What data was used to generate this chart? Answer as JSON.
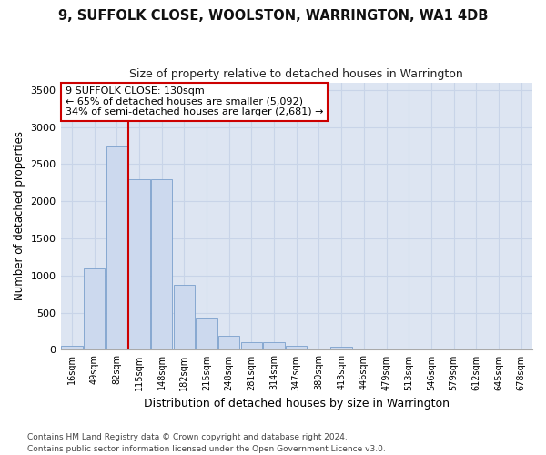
{
  "title": "9, SUFFOLK CLOSE, WOOLSTON, WARRINGTON, WA1 4DB",
  "subtitle": "Size of property relative to detached houses in Warrington",
  "xlabel": "Distribution of detached houses by size in Warrington",
  "ylabel": "Number of detached properties",
  "categories": [
    "16sqm",
    "49sqm",
    "82sqm",
    "115sqm",
    "148sqm",
    "182sqm",
    "215sqm",
    "248sqm",
    "281sqm",
    "314sqm",
    "347sqm",
    "380sqm",
    "413sqm",
    "446sqm",
    "479sqm",
    "513sqm",
    "546sqm",
    "579sqm",
    "612sqm",
    "645sqm",
    "678sqm"
  ],
  "values": [
    50,
    1100,
    2750,
    2300,
    2300,
    880,
    430,
    190,
    105,
    105,
    55,
    0,
    40,
    20,
    0,
    0,
    0,
    0,
    0,
    0,
    0
  ],
  "bar_color": "#ccd9ee",
  "bar_edge_color": "#7a9fcc",
  "vline_x": 2.5,
  "vline_color": "#cc0000",
  "annotation_text": "9 SUFFOLK CLOSE: 130sqm\n← 65% of detached houses are smaller (5,092)\n34% of semi-detached houses are larger (2,681) →",
  "annotation_box_color": "#ffffff",
  "annotation_box_edge": "#cc0000",
  "ylim": [
    0,
    3600
  ],
  "yticks": [
    0,
    500,
    1000,
    1500,
    2000,
    2500,
    3000,
    3500
  ],
  "grid_color": "#c8d4e8",
  "bg_color": "#dde5f2",
  "footer1": "Contains HM Land Registry data © Crown copyright and database right 2024.",
  "footer2": "Contains public sector information licensed under the Open Government Licence v3.0."
}
